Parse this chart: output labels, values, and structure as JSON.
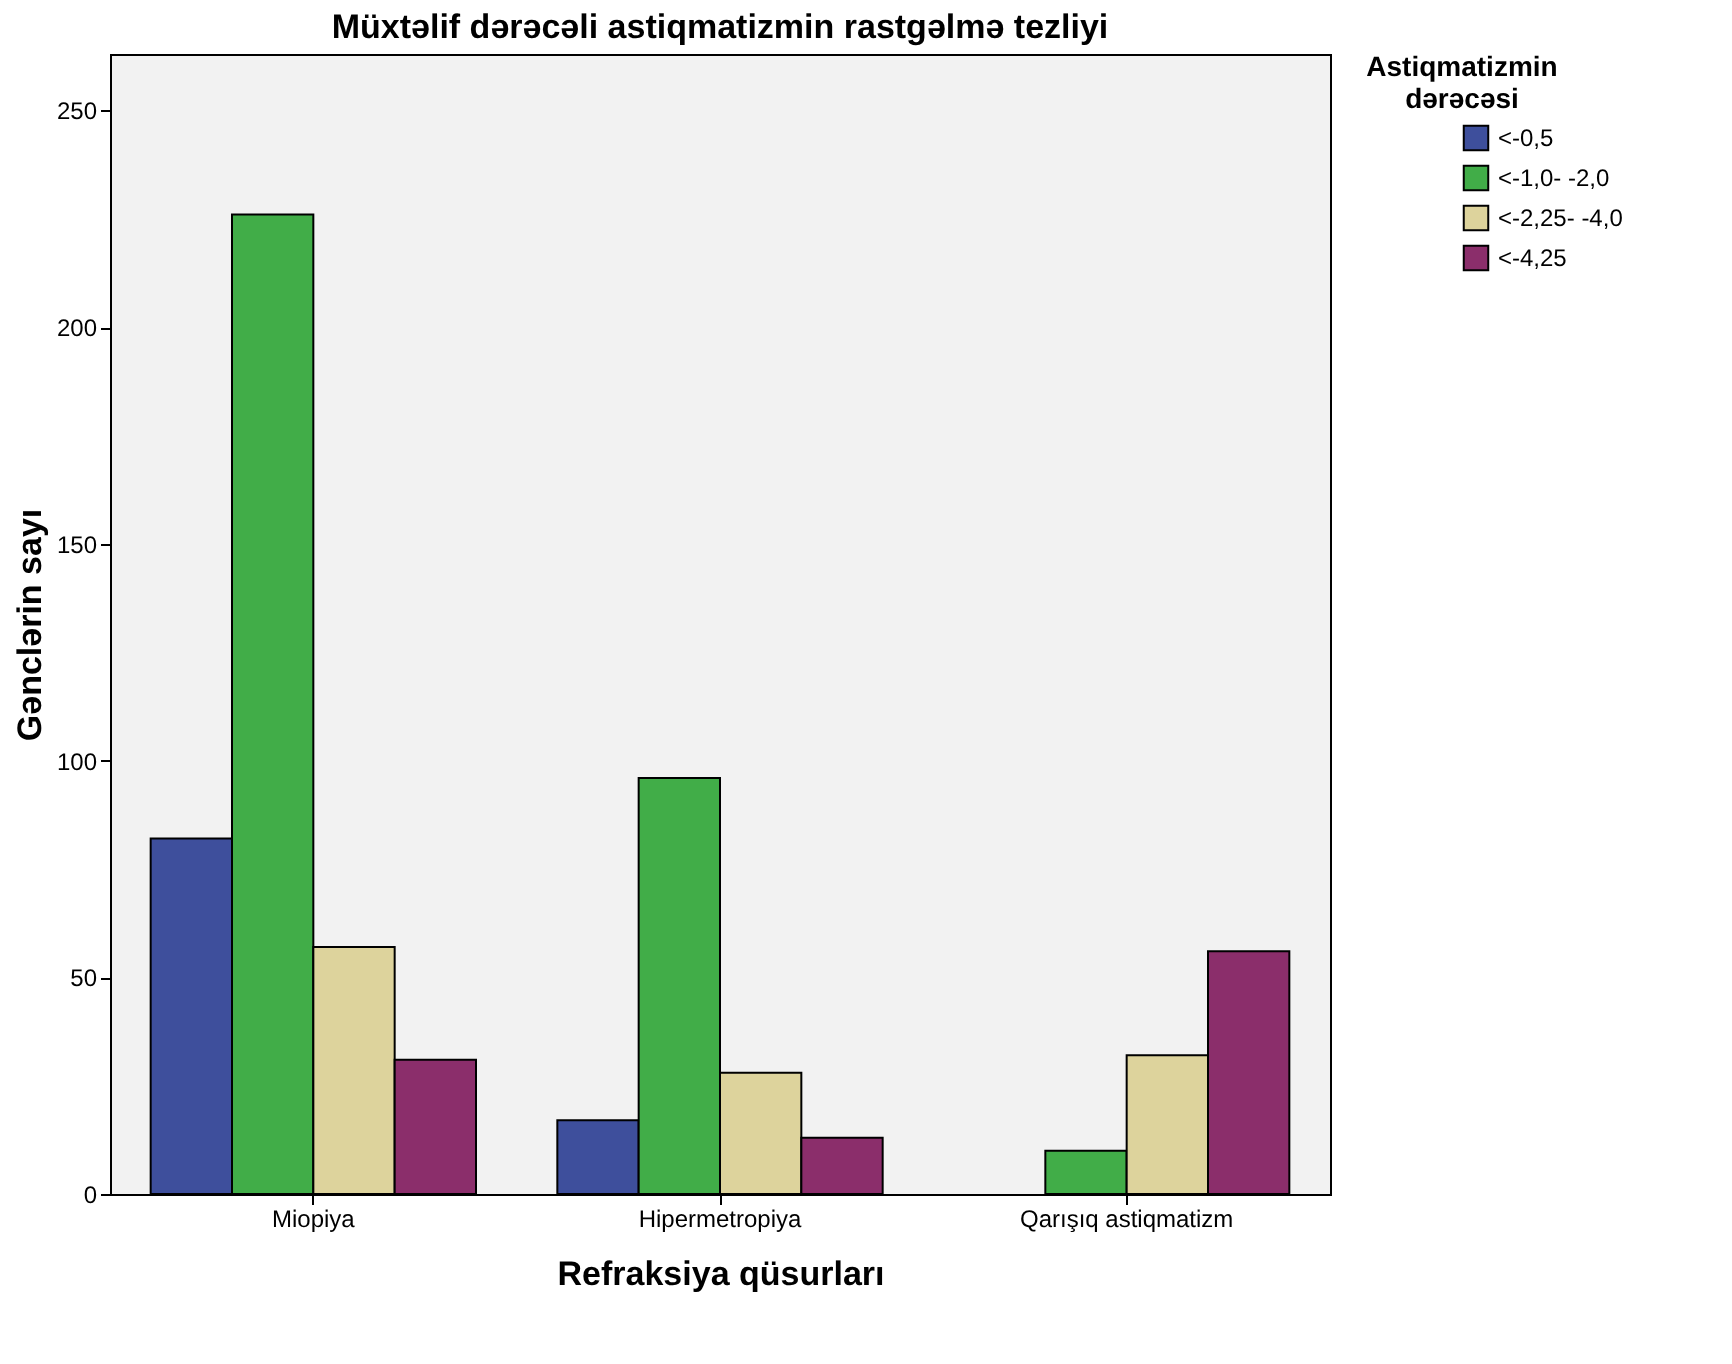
{
  "chart_data": {
    "type": "bar",
    "title": "Müxtəlif dərəcəli astiqmatizmin rastgəlmə tezliyi",
    "xlabel": "Refraksiya qüsurları",
    "ylabel": "Gənclərin sayı",
    "legend_title": "Astiqmatizmin dərəcəsi",
    "categories": [
      "Miopiya",
      "Hipermetropiya",
      "Qarışıq astiqmatizm"
    ],
    "series": [
      {
        "name": "<-0,5",
        "color": "#3e4f9c",
        "values": [
          82,
          17,
          null
        ]
      },
      {
        "name": "<-1,0- -2,0",
        "color": "#41ad48",
        "values": [
          226,
          96,
          10
        ]
      },
      {
        "name": "<-2,25- -4,0",
        "color": "#ddd39c",
        "values": [
          57,
          28,
          32
        ]
      },
      {
        "name": "<-4,25",
        "color": "#8b2e6b",
        "values": [
          31,
          13,
          56
        ]
      }
    ],
    "ylim": [
      0,
      263
    ],
    "yticks": [
      0,
      50,
      100,
      150,
      200,
      250
    ],
    "grid": false,
    "legend": "top right"
  }
}
